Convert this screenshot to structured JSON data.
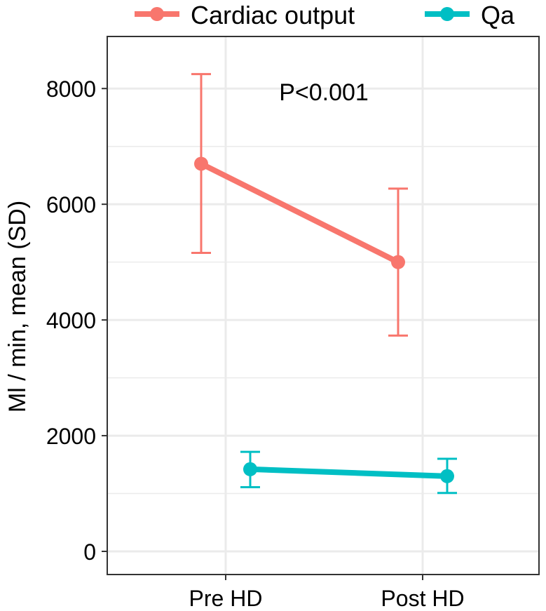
{
  "chart_data": {
    "type": "line",
    "x_categories": [
      "Pre HD",
      "Post HD"
    ],
    "ylabel": "Ml / min, mean (SD)",
    "ylim": [
      -400,
      8900
    ],
    "y_ticks": [
      0,
      2000,
      4000,
      6000,
      8000
    ],
    "grid": true,
    "legend_position": "top",
    "annotation": "P<0.001",
    "series": [
      {
        "name": "Cardiac output",
        "color": "#F8766D",
        "dodge": "left",
        "points": [
          {
            "x": "Pre HD",
            "mean": 6700,
            "lower": 5160,
            "upper": 8250
          },
          {
            "x": "Post HD",
            "mean": 5000,
            "lower": 3730,
            "upper": 6270
          }
        ]
      },
      {
        "name": "Qa",
        "color": "#00BFC4",
        "dodge": "right",
        "points": [
          {
            "x": "Pre HD",
            "mean": 1420,
            "lower": 1110,
            "upper": 1720
          },
          {
            "x": "Post HD",
            "mean": 1300,
            "lower": 1010,
            "upper": 1600
          }
        ]
      }
    ]
  }
}
